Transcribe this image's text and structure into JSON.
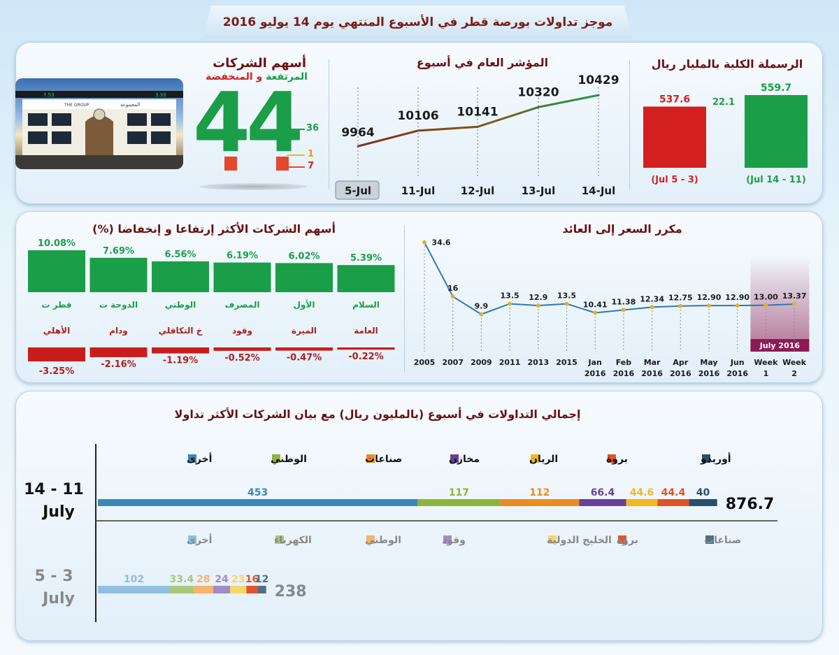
{
  "header": {
    "title": "موجز تداولات بورصة قطر في الأسبوع المنتهي يوم 14 يوليو 2016"
  },
  "colors": {
    "green": "#1a9e48",
    "red": "#d3201f",
    "brown": "#8a3a1a",
    "navy": "#6a1020",
    "blue": "#3b87b8"
  },
  "photo": {
    "sign_en": "THE GROUP",
    "sign_ar": "المجموعة",
    "ticker_left": "7.53",
    "ticker_right": "3.33"
  },
  "companies": {
    "title": "أسهم الشركات",
    "subtitle_up": "المرتفعة",
    "subtitle_and": " و ",
    "subtitle_down": "المنخفضة",
    "big_number": "44",
    "up_count": "36",
    "flat_count": "1",
    "down_count": "7"
  },
  "cap": {
    "title": "الرسملة الكلية بالمليار ريال"
  },
  "index": {
    "title": "المؤشر العام في أسبوع"
  },
  "movers": {
    "title": "أسهم الشركات الأكثر إرتفاعا و إنخفاضا  (%)"
  },
  "pe": {
    "title": "مكرر السعر إلى العائد",
    "highlight_label": "July 2016"
  },
  "volume": {
    "title": "إجمالي التداولات في أسبوع (بالمليون ريال) مع  بيان الشركات الأكثر تداولا"
  },
  "chart_data": [
    {
      "type": "bar",
      "title": "الرسملة الكلية بالمليار ريال",
      "categories": [
        "(Jul 5 - 3)",
        "(Jul 14 - 11)"
      ],
      "values": [
        537.6,
        559.7
      ],
      "difference": 22.1,
      "colors": [
        "#d3201f",
        "#1a9e48"
      ]
    },
    {
      "type": "line",
      "title": "المؤشر العام في أسبوع",
      "categories": [
        "5-Jul",
        "11-Jul",
        "12-Jul",
        "13-Jul",
        "14-Jul"
      ],
      "values": [
        9964,
        10106,
        10141,
        10320,
        10429
      ]
    },
    {
      "type": "bar",
      "title": "أسهم الشركات الأكثر إرتفاعا و إنخفاضا  (%)",
      "gainers": [
        {
          "name": "قطر ت",
          "value": 10.08
        },
        {
          "name": "الدوحة ت",
          "value": 7.69
        },
        {
          "name": "الوطني",
          "value": 6.56
        },
        {
          "name": "المصرف",
          "value": 6.19
        },
        {
          "name": "الأول",
          "value": 6.02
        },
        {
          "name": "السلام",
          "value": 5.39
        }
      ],
      "losers": [
        {
          "name": "الأهلي",
          "value": -3.25
        },
        {
          "name": "ودام",
          "value": -2.16
        },
        {
          "name": "خ التكافلي",
          "value": -1.19
        },
        {
          "name": "وقود",
          "value": -0.52
        },
        {
          "name": "الميرة",
          "value": -0.47
        },
        {
          "name": "العامة",
          "value": -0.22
        }
      ]
    },
    {
      "type": "line",
      "title": "مكرر السعر إلى العائد",
      "categories": [
        "2005",
        "2007",
        "2009",
        "2011",
        "2013",
        "2015",
        "Jan 2016",
        "Feb 2016",
        "Mar 2016",
        "Apr 2016",
        "May 2016",
        "Jun 2016",
        "Week 1",
        "Week 2"
      ],
      "values": [
        34.6,
        16,
        9.9,
        13.5,
        12.9,
        13.5,
        10.41,
        11.38,
        12.34,
        12.75,
        12.9,
        12.9,
        13.0,
        13.37
      ],
      "labels": [
        "34.6",
        "16",
        "9.9",
        "13.5",
        "12.9",
        "13.5",
        "10.41",
        "11.38",
        "12.34",
        "12.75",
        "12.90",
        "12.90",
        "13.00",
        "13.37"
      ]
    },
    {
      "type": "bar",
      "orientation": "horizontal-stacked",
      "title": "إجمالي التداولات في أسبوع (بالمليون ريال) مع  بيان الشركات الأكثر تداولا",
      "rows": [
        {
          "label_1": "14 - 11",
          "label_2": "July",
          "total": "876.7",
          "segments": [
            {
              "name": "أخرى",
              "value": 453,
              "label": "453",
              "color": "#3b87b8"
            },
            {
              "name": "الوطني",
              "value": 117,
              "label": "117",
              "color": "#8db53a"
            },
            {
              "name": "صناعات",
              "value": 112,
              "label": "112",
              "color": "#ea8d1e"
            },
            {
              "name": "مخازن",
              "value": 66.4,
              "label": "66.4",
              "color": "#6a3f99"
            },
            {
              "name": "الريان",
              "value": 44.6,
              "label": "44.6",
              "color": "#f2b81c"
            },
            {
              "name": "بروة",
              "value": 44.4,
              "label": "44.4",
              "color": "#df5324"
            },
            {
              "name": "أوريدو",
              "value": 40,
              "label": "40",
              "color": "#2a4e6b"
            }
          ]
        },
        {
          "label_1": "5 - 3",
          "label_2": "July",
          "total": "238",
          "segments": [
            {
              "name": "أخرى",
              "value": 102,
              "label": "102",
              "color": "#90bfe0"
            },
            {
              "name": "الكهرباء",
              "value": 33.4,
              "label": "33.4",
              "color": "#a8c879"
            },
            {
              "name": "الوطني",
              "value": 28,
              "label": "28",
              "color": "#f4b56a"
            },
            {
              "name": "وقود",
              "value": 24,
              "label": "24",
              "color": "#a08cc6"
            },
            {
              "name": "الخليج الدولية",
              "value": 23,
              "label": "23",
              "color": "#f5d76a"
            },
            {
              "name": "بروة",
              "value": 16,
              "label": "16",
              "color": "#e2552a"
            },
            {
              "name": "صناعات",
              "value": 12,
              "label": "12",
              "color": "#4f6e88"
            }
          ]
        }
      ]
    }
  ]
}
